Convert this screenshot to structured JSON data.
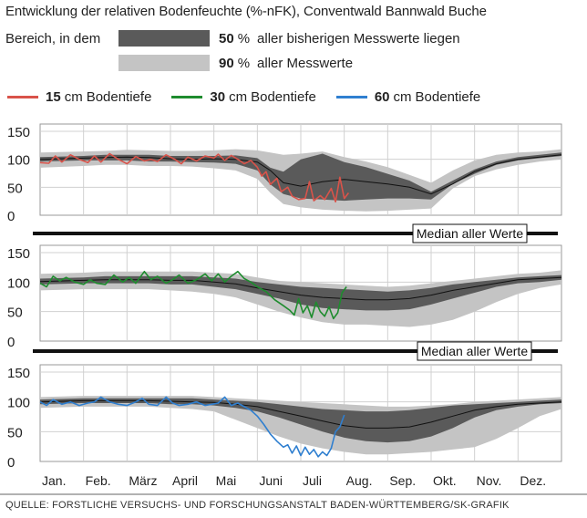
{
  "title": "Entwicklung der relativen Bodenfeuchte (%-nFK), Conventwald Bannwald Buche",
  "band_legend": {
    "prefix": "Bereich, in dem",
    "band50": {
      "pct": "50",
      "unit": "%",
      "text": "aller bisherigen Messwerte liegen",
      "color": "#5a5a5a"
    },
    "band90": {
      "pct": "90",
      "unit": "%",
      "text": "aller Messwerte",
      "color": "#c4c4c4"
    }
  },
  "series_legend": [
    {
      "depth": "15",
      "unit": "cm",
      "text": "Bodentiefe",
      "color": "#d9534a"
    },
    {
      "depth": "30",
      "unit": "cm",
      "text": "Bodentiefe",
      "color": "#1e8c2e"
    },
    {
      "depth": "60",
      "unit": "cm",
      "text": "Bodentiefe",
      "color": "#2f7fd0"
    }
  ],
  "median_label": "Median aller Werte",
  "source": "QUELLE: FORSTLICHE VERSUCHS- UND FORSCHUNGSANSTALT BADEN-WÜRTTEMBERG/SK-GRAFIK",
  "chart_data": [
    {
      "type": "area",
      "series_label": "15 cm Bodentiefe",
      "xlabel": "",
      "ylabel": "",
      "ylim": [
        0,
        150
      ],
      "yticks": [
        0,
        50,
        100,
        150
      ],
      "months": [
        "Jan.",
        "Feb.",
        "März",
        "April",
        "Mai",
        "Juni",
        "Juli",
        "Aug.",
        "Sep.",
        "Okt.",
        "Nov.",
        "Dez."
      ],
      "x": [
        0,
        1,
        1.5,
        2,
        2.5,
        3,
        3.5,
        4,
        4.5,
        5,
        5.3,
        5.6,
        6,
        6.5,
        7,
        7.5,
        8,
        8.5,
        9,
        9.5,
        10,
        10.5,
        11,
        11.5,
        12
      ],
      "band90_hi": [
        112,
        114,
        115,
        117,
        116,
        115,
        115,
        116,
        118,
        116,
        112,
        108,
        110,
        114,
        104,
        96,
        86,
        72,
        58,
        80,
        98,
        108,
        112,
        114,
        118
      ],
      "band90_lo": [
        85,
        88,
        90,
        90,
        88,
        88,
        87,
        84,
        80,
        65,
        40,
        20,
        14,
        10,
        8,
        7,
        8,
        10,
        12,
        48,
        70,
        82,
        90,
        96,
        100
      ],
      "band50_hi": [
        104,
        106,
        108,
        108,
        108,
        106,
        106,
        106,
        107,
        102,
        85,
        78,
        100,
        110,
        95,
        86,
        74,
        62,
        42,
        62,
        82,
        96,
        104,
        108,
        112
      ],
      "band50_lo": [
        96,
        98,
        98,
        98,
        96,
        96,
        95,
        94,
        92,
        80,
        55,
        38,
        30,
        28,
        26,
        28,
        30,
        30,
        28,
        56,
        74,
        90,
        98,
        102,
        106
      ],
      "median": [
        100,
        102,
        103,
        104,
        103,
        101,
        100,
        101,
        100,
        95,
        80,
        58,
        52,
        60,
        64,
        60,
        56,
        50,
        38,
        56,
        78,
        92,
        100,
        104,
        108
      ],
      "current_x": [
        0,
        0.2,
        0.35,
        0.5,
        0.7,
        0.9,
        1.1,
        1.25,
        1.4,
        1.6,
        1.8,
        2.0,
        2.2,
        2.4,
        2.55,
        2.7,
        2.9,
        3.1,
        3.25,
        3.4,
        3.6,
        3.8,
        4.0,
        4.1,
        4.25,
        4.4,
        4.55,
        4.7,
        4.85,
        5.0,
        5.1,
        5.2,
        5.3,
        5.45,
        5.55,
        5.7,
        5.8,
        5.95,
        6.1,
        6.2,
        6.3,
        6.45,
        6.55,
        6.7,
        6.8,
        6.9,
        7.0,
        7.1
      ],
      "current_y": [
        94,
        93,
        106,
        95,
        108,
        100,
        94,
        106,
        95,
        110,
        100,
        92,
        105,
        97,
        100,
        96,
        108,
        100,
        92,
        104,
        97,
        106,
        102,
        109,
        98,
        107,
        100,
        92,
        98,
        86,
        70,
        78,
        55,
        66,
        42,
        50,
        34,
        28,
        30,
        60,
        26,
        35,
        28,
        48,
        24,
        68,
        30,
        40
      ]
    },
    {
      "type": "area",
      "series_label": "30 cm Bodentiefe",
      "xlabel": "",
      "ylabel": "",
      "ylim": [
        0,
        150
      ],
      "yticks": [
        0,
        50,
        100,
        150
      ],
      "months": [
        "Jan.",
        "Feb.",
        "März",
        "April",
        "Mai",
        "Juni",
        "Juli",
        "Aug.",
        "Sep.",
        "Okt.",
        "Nov.",
        "Dez."
      ],
      "x": [
        0,
        1,
        1.5,
        2,
        2.5,
        3,
        3.5,
        4,
        4.5,
        5,
        5.5,
        6,
        6.5,
        7,
        7.5,
        8,
        8.5,
        9,
        9.5,
        10,
        10.5,
        11,
        11.5,
        12
      ],
      "band90_hi": [
        114,
        116,
        118,
        118,
        118,
        118,
        118,
        116,
        114,
        108,
        102,
        100,
        98,
        96,
        94,
        92,
        94,
        98,
        102,
        106,
        110,
        114,
        116,
        120
      ],
      "band90_lo": [
        86,
        88,
        88,
        88,
        88,
        86,
        84,
        80,
        74,
        62,
        50,
        40,
        32,
        28,
        28,
        26,
        24,
        28,
        36,
        50,
        66,
        80,
        90,
        96
      ],
      "band50_hi": [
        106,
        108,
        110,
        110,
        110,
        110,
        110,
        108,
        106,
        100,
        96,
        92,
        90,
        88,
        86,
        84,
        86,
        90,
        96,
        100,
        104,
        108,
        110,
        112
      ],
      "band50_lo": [
        96,
        98,
        98,
        98,
        98,
        96,
        96,
        92,
        88,
        80,
        72,
        62,
        56,
        54,
        52,
        52,
        54,
        62,
        72,
        82,
        92,
        98,
        100,
        104
      ],
      "median": [
        101,
        103,
        104,
        104,
        104,
        103,
        103,
        100,
        97,
        90,
        84,
        78,
        74,
        72,
        70,
        70,
        72,
        78,
        86,
        92,
        98,
        104,
        106,
        108
      ],
      "current_x": [
        0,
        0.15,
        0.3,
        0.45,
        0.6,
        0.8,
        1.0,
        1.15,
        1.3,
        1.5,
        1.7,
        1.9,
        2.05,
        2.2,
        2.4,
        2.55,
        2.7,
        2.9,
        3.05,
        3.2,
        3.4,
        3.6,
        3.8,
        3.95,
        4.1,
        4.25,
        4.4,
        4.55,
        4.7,
        4.85,
        5.0,
        5.2,
        5.4,
        5.6,
        5.75,
        5.85,
        5.95,
        6.05,
        6.15,
        6.25,
        6.35,
        6.45,
        6.55,
        6.65,
        6.75,
        6.85,
        6.95,
        7.05
      ],
      "current_y": [
        98,
        92,
        110,
        102,
        108,
        100,
        96,
        104,
        98,
        96,
        112,
        100,
        108,
        98,
        118,
        104,
        110,
        98,
        104,
        112,
        98,
        104,
        114,
        102,
        114,
        100,
        110,
        118,
        106,
        100,
        92,
        84,
        70,
        60,
        52,
        44,
        72,
        48,
        60,
        40,
        66,
        50,
        42,
        58,
        38,
        48,
        82,
        92
      ]
    },
    {
      "type": "area",
      "series_label": "60 cm Bodentiefe",
      "xlabel": "",
      "ylabel": "",
      "ylim": [
        0,
        150
      ],
      "yticks": [
        0,
        50,
        100,
        150
      ],
      "months": [
        "Jan.",
        "Feb.",
        "März",
        "April",
        "Mai",
        "Juni",
        "Juli",
        "Aug.",
        "Sep.",
        "Okt.",
        "Nov.",
        "Dez."
      ],
      "x": [
        0,
        1,
        1.5,
        2,
        2.5,
        3,
        3.5,
        4,
        4.5,
        5,
        5.5,
        6,
        6.5,
        7,
        7.5,
        8,
        8.5,
        9,
        9.5,
        10,
        10.5,
        11,
        11.5,
        12
      ],
      "band90_hi": [
        108,
        110,
        110,
        110,
        110,
        110,
        110,
        108,
        106,
        104,
        102,
        100,
        98,
        96,
        94,
        92,
        92,
        94,
        96,
        100,
        102,
        104,
        106,
        108
      ],
      "band90_lo": [
        90,
        92,
        92,
        92,
        92,
        90,
        88,
        84,
        70,
        56,
        42,
        30,
        22,
        16,
        12,
        12,
        14,
        16,
        20,
        24,
        38,
        56,
        76,
        88
      ],
      "band50_hi": [
        104,
        106,
        106,
        106,
        106,
        106,
        106,
        104,
        102,
        100,
        96,
        92,
        88,
        86,
        84,
        84,
        86,
        90,
        94,
        96,
        98,
        100,
        102,
        104
      ],
      "band50_lo": [
        96,
        98,
        98,
        98,
        98,
        96,
        96,
        94,
        90,
        84,
        74,
        62,
        50,
        40,
        34,
        32,
        34,
        42,
        56,
        74,
        86,
        92,
        96,
        98
      ],
      "median": [
        100,
        102,
        102,
        102,
        102,
        101,
        100,
        99,
        96,
        92,
        84,
        76,
        68,
        60,
        56,
        56,
        58,
        66,
        76,
        86,
        92,
        96,
        98,
        100
      ],
      "current_x": [
        0,
        0.15,
        0.3,
        0.5,
        0.7,
        0.9,
        1.1,
        1.25,
        1.4,
        1.6,
        1.8,
        2.0,
        2.2,
        2.35,
        2.5,
        2.7,
        2.9,
        3.05,
        3.2,
        3.4,
        3.6,
        3.8,
        3.95,
        4.1,
        4.25,
        4.4,
        4.55,
        4.7,
        4.85,
        5.0,
        5.15,
        5.3,
        5.45,
        5.6,
        5.7,
        5.8,
        5.9,
        6.0,
        6.1,
        6.2,
        6.3,
        6.4,
        6.5,
        6.6,
        6.7,
        6.8,
        6.9,
        7.0
      ],
      "current_y": [
        100,
        94,
        104,
        96,
        100,
        94,
        98,
        100,
        108,
        100,
        96,
        94,
        100,
        106,
        96,
        94,
        108,
        98,
        94,
        96,
        100,
        94,
        96,
        98,
        108,
        94,
        98,
        92,
        86,
        76,
        62,
        46,
        34,
        24,
        28,
        14,
        26,
        10,
        24,
        12,
        20,
        8,
        16,
        10,
        22,
        50,
        58,
        78
      ]
    }
  ]
}
